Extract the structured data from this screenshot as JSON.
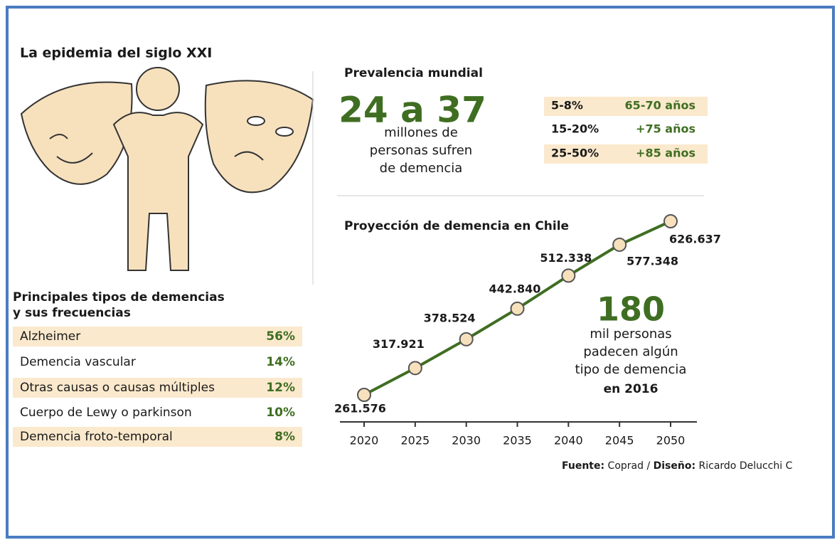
{
  "title": "La epidemia del siglo XXI",
  "types": {
    "title": [
      "Principales tipos de demencias",
      "y sus frecuencias"
    ],
    "rows": [
      [
        "Alzheimer",
        "56%"
      ],
      [
        "Demencia vascular",
        "14%"
      ],
      [
        "Otras causas o causas múltiples",
        "12%"
      ],
      [
        "Cuerpo de Lewy o parkinson",
        "10%"
      ],
      [
        "Demencia froto-temporal",
        "8%"
      ]
    ]
  },
  "prevalence": {
    "title": "Prevalencia mundial",
    "headline": "24 a 37",
    "caption": [
      "millones de",
      "personas sufren",
      "de demencia"
    ],
    "rows": [
      [
        "5-8%",
        "65-70 años"
      ],
      [
        "15-20%",
        "+75 años"
      ],
      [
        "25-50%",
        "+85 años"
      ]
    ]
  },
  "chart_data": {
    "type": "line",
    "title": "Proyección de demencia en Chile",
    "categories": [
      "2020",
      "2025",
      "2030",
      "2035",
      "2040",
      "2045",
      "2050"
    ],
    "values": [
      261576,
      317921,
      378524,
      442840,
      512338,
      577348,
      626637
    ],
    "value_labels": [
      "261.576",
      "317.921",
      "378.524",
      "442.840",
      "512.338",
      "577.348",
      "626.637"
    ],
    "color": "#3f6e22"
  },
  "highlight": {
    "value": "180",
    "caption": [
      "mil personas",
      "padecen algún",
      "tipo de demencia"
    ],
    "emphasis": "en 2016"
  },
  "credits": {
    "items": [
      {
        "label": "Fuente:",
        "value": "Coprad"
      },
      {
        "label": "Diseño:",
        "value": "Ricardo Delucchi C"
      }
    ],
    "separator": "/"
  }
}
